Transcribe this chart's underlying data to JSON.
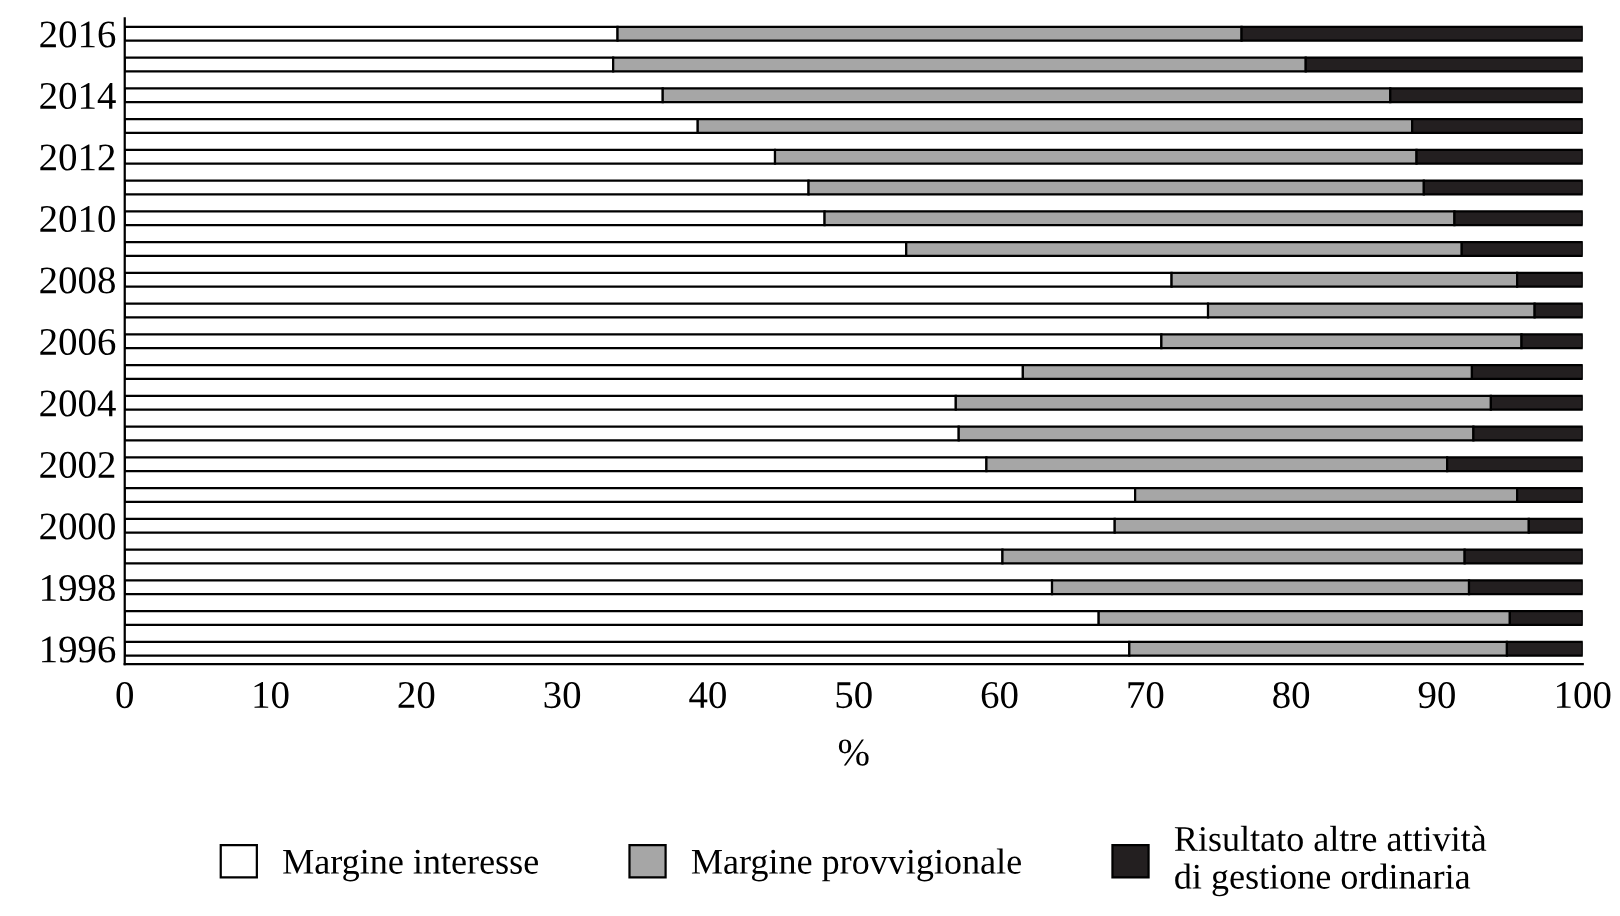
{
  "chart_data": {
    "type": "bar",
    "orientation": "horizontal",
    "stacked": true,
    "xlabel": "%",
    "categories": [
      "2016",
      null,
      "2014",
      null,
      "2012",
      null,
      "2010",
      null,
      "2008",
      null,
      "2006",
      null,
      "2004",
      null,
      "2002",
      null,
      "2000",
      null,
      "1998",
      null,
      "1996"
    ],
    "series": [
      {
        "name": "Margine interesse",
        "color": "#ffffff",
        "values": [
          33.8,
          33.5,
          36.9,
          39.3,
          44.6,
          46.9,
          48.0,
          53.6,
          71.8,
          74.3,
          71.1,
          61.6,
          57.0,
          57.2,
          59.1,
          69.3,
          67.9,
          60.2,
          63.6,
          66.8,
          68.9
        ]
      },
      {
        "name": "Margine provvigionale",
        "color": "#a6a6a6",
        "values": [
          42.8,
          47.5,
          49.9,
          49.0,
          44.0,
          42.2,
          43.2,
          38.1,
          23.7,
          22.4,
          24.7,
          30.8,
          36.7,
          35.3,
          31.6,
          26.2,
          28.4,
          31.7,
          28.6,
          28.2,
          25.9
        ]
      },
      {
        "name": "Risultato altre attività\ndi gestione ordinaria",
        "color": "#231f20",
        "values": [
          23.4,
          19.0,
          13.2,
          11.7,
          11.4,
          10.9,
          8.8,
          8.3,
          4.5,
          3.3,
          4.2,
          7.6,
          6.3,
          7.5,
          9.3,
          4.5,
          3.7,
          8.1,
          7.8,
          5.0,
          5.2
        ]
      }
    ],
    "xlim": [
      0,
      100
    ],
    "xticks": [
      0,
      10,
      20,
      30,
      40,
      50,
      60,
      70,
      80,
      90,
      100
    ],
    "grid": false,
    "legend": "bottom"
  }
}
